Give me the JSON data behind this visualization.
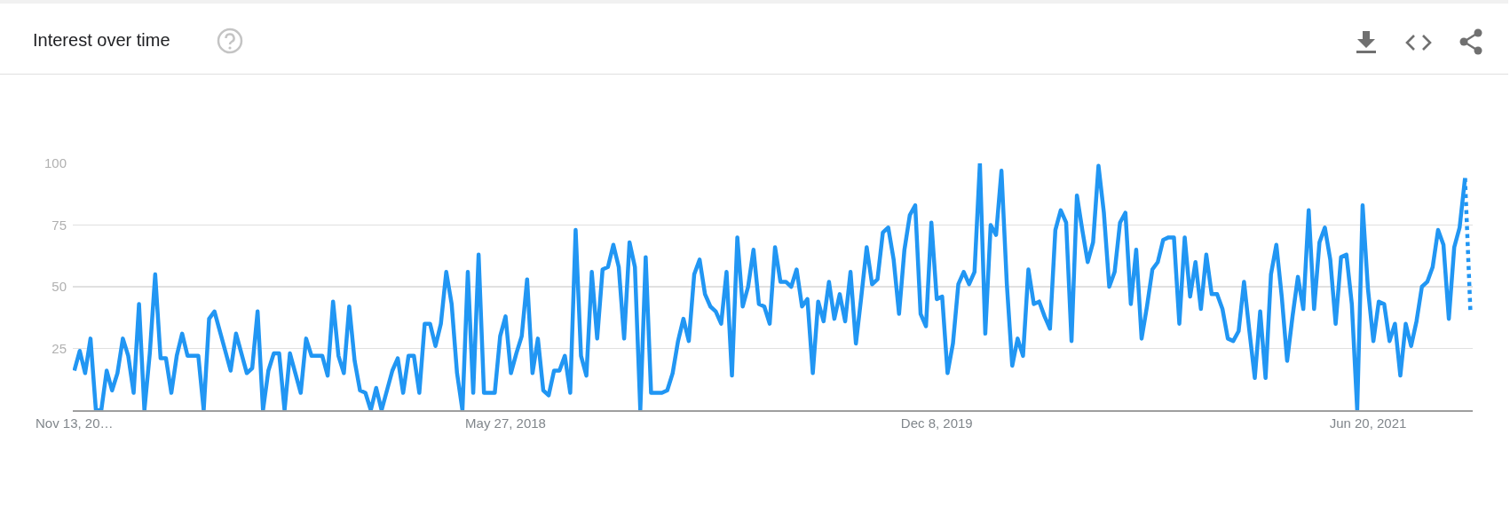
{
  "chart_data": {
    "type": "line",
    "title": "Interest over time",
    "xlim": [
      "2016-11-11",
      "2021-11-03"
    ],
    "xticks": [
      {
        "value": "2016-11-13",
        "label": "Nov 13, 20…"
      },
      {
        "value": "2018-05-27",
        "label": "May 27, 2018"
      },
      {
        "value": "2019-12-08",
        "label": "Dec 8, 2019"
      },
      {
        "value": "2021-06-20",
        "label": "Jun 20, 2021"
      }
    ],
    "ylim": [
      0,
      100
    ],
    "yticks": [
      25,
      50,
      75,
      100
    ],
    "grid": "y",
    "marker": "none",
    "series": [
      {
        "color": "#2196f3",
        "line_style": "solid",
        "x": [
          "2016-11-13",
          "2016-11-20",
          "2016-11-27",
          "2016-12-04",
          "2016-12-11",
          "2016-12-18",
          "2016-12-25",
          "2017-01-01",
          "2017-01-08",
          "2017-01-15",
          "2017-01-22",
          "2017-01-29",
          "2017-02-05",
          "2017-02-12",
          "2017-02-19",
          "2017-02-26",
          "2017-03-05",
          "2017-03-12",
          "2017-03-19",
          "2017-03-26",
          "2017-04-02",
          "2017-04-09",
          "2017-04-16",
          "2017-04-23",
          "2017-04-30",
          "2017-05-07",
          "2017-05-14",
          "2017-05-21",
          "2017-05-28",
          "2017-06-04",
          "2017-06-11",
          "2017-06-18",
          "2017-06-25",
          "2017-07-02",
          "2017-07-09",
          "2017-07-16",
          "2017-07-23",
          "2017-07-30",
          "2017-08-06",
          "2017-08-13",
          "2017-08-20",
          "2017-08-27",
          "2017-09-03",
          "2017-09-10",
          "2017-09-17",
          "2017-09-24",
          "2017-10-01",
          "2017-10-08",
          "2017-10-15",
          "2017-10-22",
          "2017-10-29",
          "2017-11-05",
          "2017-11-12",
          "2017-11-19",
          "2017-11-26",
          "2017-12-03",
          "2017-12-10",
          "2017-12-17",
          "2017-12-24",
          "2017-12-31",
          "2018-01-07",
          "2018-01-14",
          "2018-01-21",
          "2018-01-28",
          "2018-02-04",
          "2018-02-11",
          "2018-02-18",
          "2018-02-25",
          "2018-03-04",
          "2018-03-11",
          "2018-03-18",
          "2018-03-25",
          "2018-04-01",
          "2018-04-08",
          "2018-04-15",
          "2018-04-22",
          "2018-04-29",
          "2018-05-06",
          "2018-05-13",
          "2018-05-20",
          "2018-05-27",
          "2018-06-03",
          "2018-06-10",
          "2018-06-17",
          "2018-06-24",
          "2018-07-01",
          "2018-07-08",
          "2018-07-15",
          "2018-07-22",
          "2018-07-29",
          "2018-08-05",
          "2018-08-12",
          "2018-08-19",
          "2018-08-26",
          "2018-09-02",
          "2018-09-09",
          "2018-09-16",
          "2018-09-23",
          "2018-09-30",
          "2018-10-07",
          "2018-10-14",
          "2018-10-21",
          "2018-10-28",
          "2018-11-04",
          "2018-11-11",
          "2018-11-18",
          "2018-11-25",
          "2018-12-02",
          "2018-12-09",
          "2018-12-16",
          "2018-12-23",
          "2018-12-30",
          "2019-01-06",
          "2019-01-13",
          "2019-01-20",
          "2019-01-27",
          "2019-02-03",
          "2019-02-10",
          "2019-02-17",
          "2019-02-24",
          "2019-03-03",
          "2019-03-10",
          "2019-03-17",
          "2019-03-24",
          "2019-03-31",
          "2019-04-07",
          "2019-04-14",
          "2019-04-21",
          "2019-04-28",
          "2019-05-05",
          "2019-05-12",
          "2019-05-19",
          "2019-05-26",
          "2019-06-02",
          "2019-06-09",
          "2019-06-16",
          "2019-06-23",
          "2019-06-30",
          "2019-07-07",
          "2019-07-14",
          "2019-07-21",
          "2019-07-28",
          "2019-08-04",
          "2019-08-11",
          "2019-08-18",
          "2019-08-25",
          "2019-09-01",
          "2019-09-08",
          "2019-09-15",
          "2019-09-22",
          "2019-09-29",
          "2019-10-06",
          "2019-10-13",
          "2019-10-20",
          "2019-10-27",
          "2019-11-03",
          "2019-11-10",
          "2019-11-17",
          "2019-11-24",
          "2019-12-01",
          "2019-12-08",
          "2019-12-15",
          "2019-12-22",
          "2019-12-29",
          "2020-01-05",
          "2020-01-12",
          "2020-01-19",
          "2020-01-26",
          "2020-02-02",
          "2020-02-09",
          "2020-02-16",
          "2020-02-23",
          "2020-03-01",
          "2020-03-08",
          "2020-03-15",
          "2020-03-22",
          "2020-03-29",
          "2020-04-05",
          "2020-04-12",
          "2020-04-19",
          "2020-04-26",
          "2020-05-03",
          "2020-05-10",
          "2020-05-17",
          "2020-05-24",
          "2020-05-31",
          "2020-06-07",
          "2020-06-14",
          "2020-06-21",
          "2020-06-28",
          "2020-07-05",
          "2020-07-12",
          "2020-07-19",
          "2020-07-26",
          "2020-08-02",
          "2020-08-09",
          "2020-08-16",
          "2020-08-23",
          "2020-08-30",
          "2020-09-06",
          "2020-09-13",
          "2020-09-20",
          "2020-09-27",
          "2020-10-04",
          "2020-10-11",
          "2020-10-18",
          "2020-10-25",
          "2020-11-01",
          "2020-11-08",
          "2020-11-15",
          "2020-11-22",
          "2020-11-29",
          "2020-12-06",
          "2020-12-13",
          "2020-12-20",
          "2020-12-27",
          "2021-01-03",
          "2021-01-10",
          "2021-01-17",
          "2021-01-24",
          "2021-01-31",
          "2021-02-07",
          "2021-02-14",
          "2021-02-21",
          "2021-02-28",
          "2021-03-07",
          "2021-03-14",
          "2021-03-21",
          "2021-03-28",
          "2021-04-04",
          "2021-04-11",
          "2021-04-18",
          "2021-04-25",
          "2021-05-02",
          "2021-05-09",
          "2021-05-16",
          "2021-05-23",
          "2021-05-30",
          "2021-06-06",
          "2021-06-13",
          "2021-06-20",
          "2021-06-27",
          "2021-07-04",
          "2021-07-11",
          "2021-07-18",
          "2021-07-25",
          "2021-08-01",
          "2021-08-08",
          "2021-08-15",
          "2021-08-22",
          "2021-08-29",
          "2021-09-05",
          "2021-09-12",
          "2021-09-19",
          "2021-09-26",
          "2021-10-03",
          "2021-10-10",
          "2021-10-17",
          "2021-10-24"
        ],
        "values": [
          16,
          24,
          15,
          29,
          0,
          0,
          16,
          8,
          15,
          29,
          22,
          7,
          43,
          0,
          23,
          55,
          21,
          21,
          7,
          22,
          31,
          22,
          22,
          22,
          0,
          37,
          40,
          32,
          24,
          16,
          31,
          23,
          15,
          17,
          40,
          0,
          16,
          23,
          23,
          0,
          23,
          15,
          7,
          29,
          22,
          22,
          22,
          14,
          44,
          22,
          15,
          42,
          20,
          8,
          7,
          0,
          9,
          0,
          8,
          16,
          21,
          7,
          22,
          22,
          7,
          35,
          35,
          26,
          35,
          56,
          43,
          15,
          0,
          56,
          7,
          63,
          7,
          7,
          7,
          30,
          38,
          15,
          23,
          30,
          53,
          15,
          29,
          8,
          6,
          16,
          16,
          22,
          7,
          73,
          22,
          14,
          56,
          29,
          57,
          58,
          67,
          58,
          29,
          68,
          58,
          0,
          62,
          7,
          7,
          7,
          8,
          15,
          28,
          37,
          28,
          55,
          61,
          47,
          42,
          40,
          35,
          56,
          14,
          70,
          42,
          50,
          65,
          43,
          42,
          35,
          66,
          52,
          52,
          50,
          57,
          42,
          45,
          15,
          44,
          36,
          52,
          37,
          47,
          36,
          56,
          27,
          46,
          66,
          51,
          53,
          72,
          74,
          61,
          39,
          65,
          79,
          83,
          39,
          34,
          76,
          45,
          46,
          15,
          27,
          51,
          56,
          51,
          56,
          100,
          31,
          75,
          71,
          97,
          51,
          18,
          29,
          22,
          57,
          43,
          44,
          38,
          33,
          73,
          81,
          76,
          28,
          87,
          73,
          60,
          68,
          99,
          80,
          50,
          56,
          76,
          80,
          43,
          65,
          29,
          42,
          57,
          60,
          69,
          70,
          70,
          35,
          70,
          46,
          60,
          41,
          63,
          47,
          47,
          41,
          29,
          28,
          32,
          52,
          32,
          13,
          40,
          13,
          55,
          67,
          46,
          20,
          38,
          54,
          41,
          81,
          41,
          68,
          74,
          61,
          35,
          62,
          63,
          43,
          0,
          83,
          49,
          28,
          44,
          43,
          28,
          35,
          14,
          35,
          26,
          36,
          50,
          52,
          58,
          73,
          67,
          37,
          66,
          74,
          94
        ]
      },
      {
        "color": "#2196f3",
        "line_style": "dotted",
        "x": [
          "2021-10-24",
          "2021-10-31"
        ],
        "values": [
          94,
          40
        ]
      }
    ]
  }
}
